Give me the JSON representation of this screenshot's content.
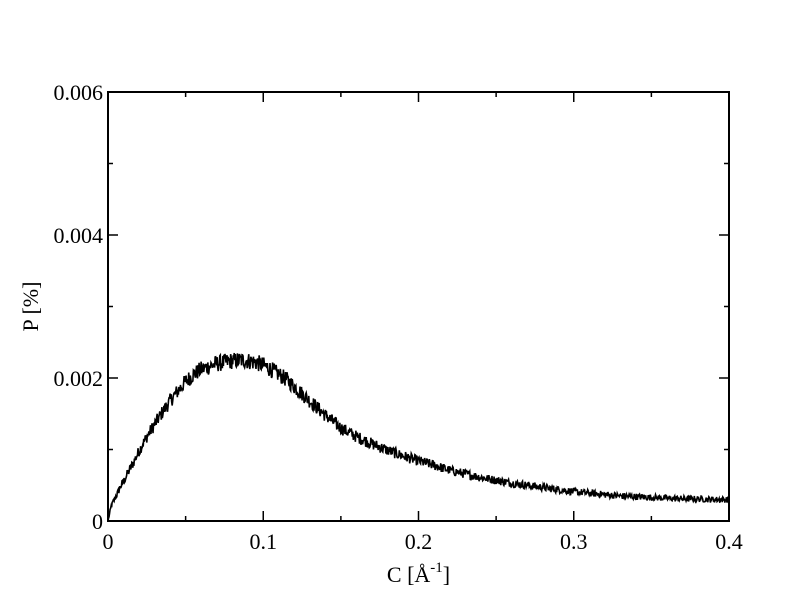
{
  "chart_data": {
    "type": "line",
    "title": "",
    "xlabel": "C [Å",
    "xlabel_superscript": "-1",
    "xlabel_suffix": "]",
    "ylabel": "P [%]",
    "xlim": [
      0,
      0.4
    ],
    "ylim": [
      0,
      0.006
    ],
    "x_ticks": [
      0,
      0.1,
      0.2,
      0.3,
      0.4
    ],
    "x_tick_labels": [
      "0",
      "0.1",
      "0.2",
      "0.3",
      "0.4"
    ],
    "y_ticks": [
      0,
      0.002,
      0.004,
      0.006
    ],
    "y_tick_labels": [
      "0",
      "0.002",
      "0.004",
      "0.006"
    ],
    "grid": false,
    "legend": "none",
    "line_color": "#000000",
    "series": [
      {
        "x": [
          0,
          0.002,
          0.004,
          0.006,
          0.008,
          0.01,
          0.013,
          0.016,
          0.02,
          0.025,
          0.03,
          0.035,
          0.04,
          0.045,
          0.05,
          0.055,
          0.06,
          0.065,
          0.07,
          0.075,
          0.08,
          0.085,
          0.09,
          0.095,
          0.1,
          0.105,
          0.11,
          0.115,
          0.12,
          0.125,
          0.13,
          0.135,
          0.14,
          0.145,
          0.15,
          0.16,
          0.17,
          0.18,
          0.19,
          0.2,
          0.21,
          0.22,
          0.23,
          0.24,
          0.25,
          0.26,
          0.27,
          0.28,
          0.29,
          0.3,
          0.31,
          0.32,
          0.33,
          0.34,
          0.35,
          0.36,
          0.37,
          0.38,
          0.39,
          0.4
        ],
        "values": [
          0.0,
          0.0002,
          0.0003,
          0.00038,
          0.00048,
          0.00055,
          0.00068,
          0.0008,
          0.00098,
          0.00118,
          0.00135,
          0.00152,
          0.00168,
          0.00182,
          0.00195,
          0.00205,
          0.00212,
          0.00216,
          0.0022,
          0.00222,
          0.00224,
          0.00225,
          0.00224,
          0.00222,
          0.00218,
          0.00212,
          0.00205,
          0.00198,
          0.00188,
          0.00178,
          0.00168,
          0.00158,
          0.00148,
          0.00139,
          0.0013,
          0.00118,
          0.00108,
          0.00099,
          0.00091,
          0.00084,
          0.00078,
          0.00071,
          0.00066,
          0.00061,
          0.00057,
          0.00053,
          0.0005,
          0.00047,
          0.00044,
          0.00041,
          0.00039,
          0.00037,
          0.00035,
          0.00034,
          0.00033,
          0.00032,
          0.00031,
          0.00031,
          0.0003,
          0.0003
        ]
      }
    ]
  }
}
